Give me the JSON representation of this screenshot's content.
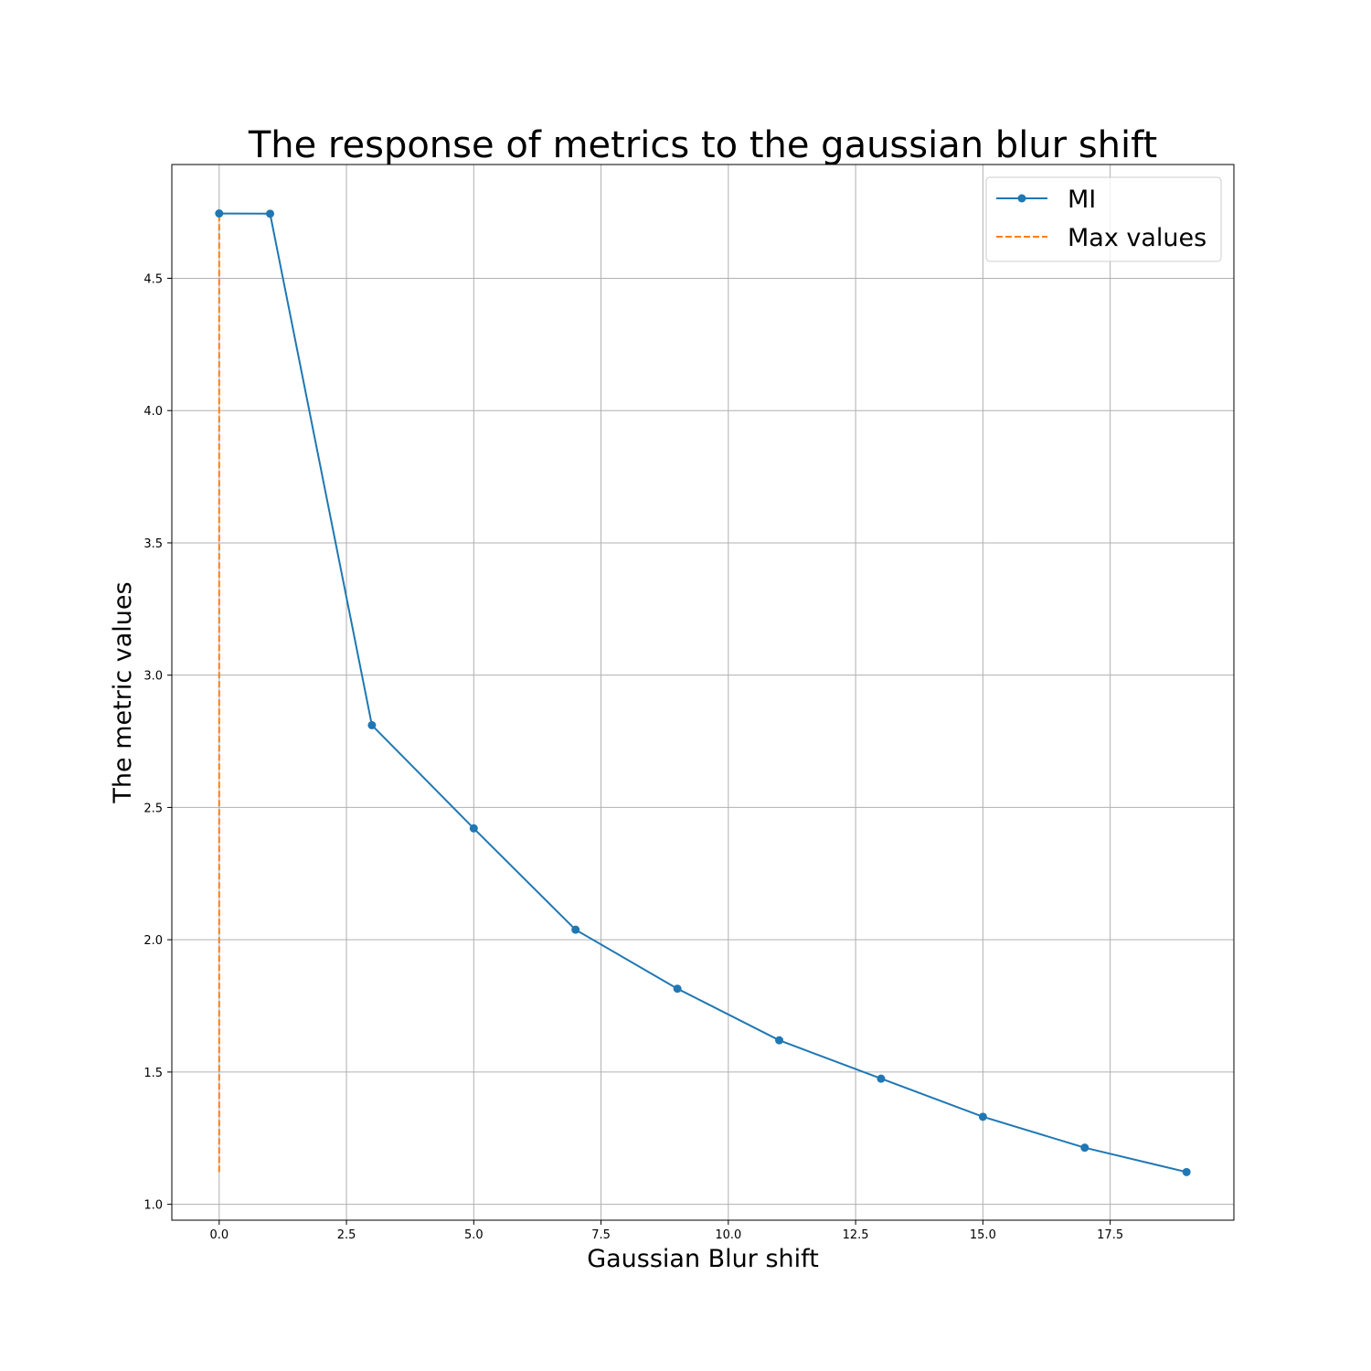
{
  "chart_data": {
    "type": "line",
    "title": "The response of metrics to the gaussian blur shift",
    "xlabel": "Gaussian Blur shift",
    "ylabel": "The metric values",
    "xlim": [
      -0.93,
      19.93
    ],
    "ylim": [
      0.94,
      4.93
    ],
    "xticks": [
      0,
      2.5,
      5,
      7.5,
      10,
      12.5,
      15,
      17.5
    ],
    "xtick_labels": [
      "0.0",
      "2.5",
      "5.0",
      "7.5",
      "10.0",
      "12.5",
      "15.0",
      "17.5"
    ],
    "yticks": [
      1.0,
      1.5,
      2.0,
      2.5,
      3.0,
      3.5,
      4.0,
      4.5
    ],
    "ytick_labels": [
      "1.0",
      "1.5",
      "2.0",
      "2.5",
      "3.0",
      "3.5",
      "4.0",
      "4.5"
    ],
    "grid": true,
    "legend_position": "top-right",
    "series": [
      {
        "name": "MI",
        "style": "solid-marker",
        "color": "#1f77b4",
        "x": [
          0,
          1,
          3,
          5,
          7,
          9,
          11,
          13,
          15,
          17,
          19
        ],
        "y": [
          4.745,
          4.744,
          2.811,
          2.421,
          2.038,
          1.815,
          1.62,
          1.475,
          1.331,
          1.214,
          1.122
        ]
      },
      {
        "name": "Max values",
        "style": "dashed",
        "color": "#ff7f0e",
        "x": [
          0,
          0
        ],
        "y": [
          1.122,
          4.745
        ]
      }
    ]
  }
}
